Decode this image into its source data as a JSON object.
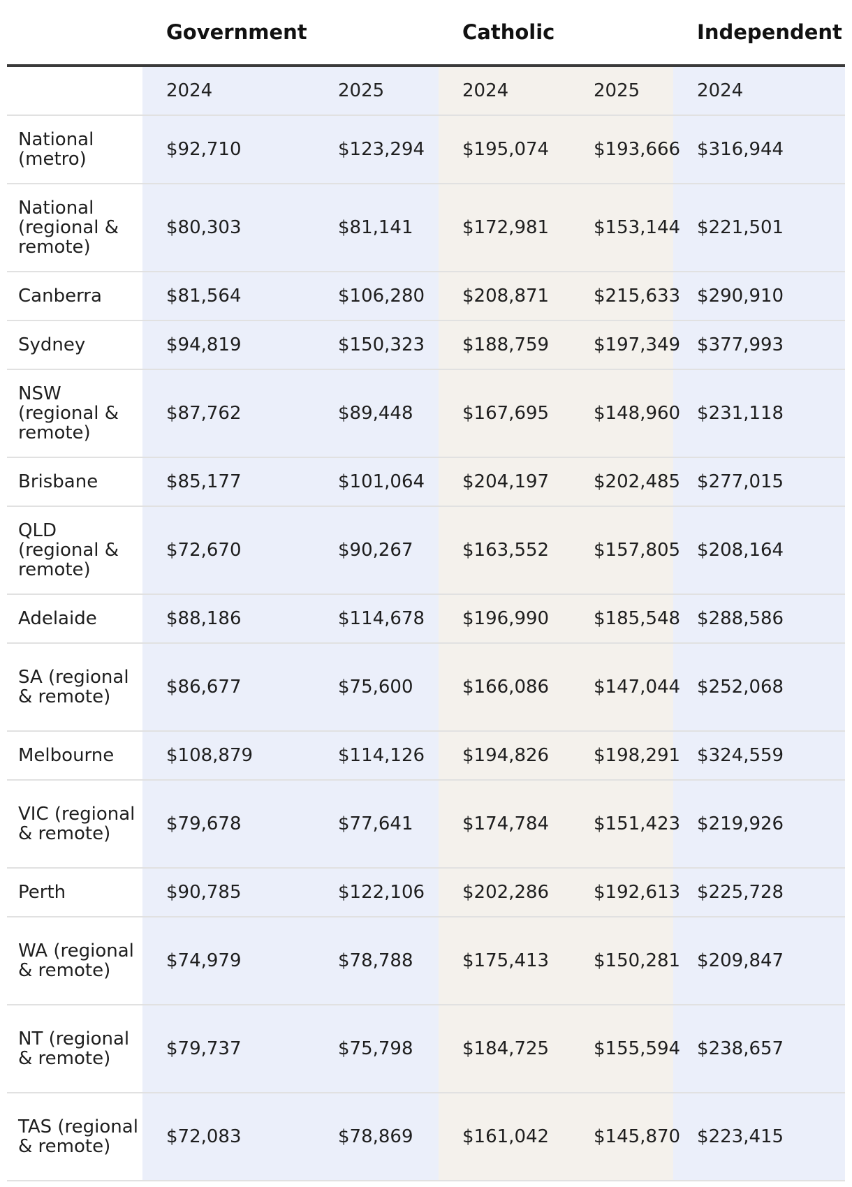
{
  "table": {
    "groups": [
      "Government",
      "Catholic",
      "Independent"
    ],
    "years": [
      "2024",
      "2025",
      "2024",
      "2025",
      "2024"
    ],
    "rows": [
      {
        "region": "National (metro)",
        "values": [
          "$92,710",
          "$123,294",
          "$195,074",
          "$193,666",
          "$316,944"
        ]
      },
      {
        "region": "National (regional & remote)",
        "values": [
          "$80,303",
          "$81,141",
          "$172,981",
          "$153,144",
          "$221,501"
        ]
      },
      {
        "region": "Canberra",
        "values": [
          "$81,564",
          "$106,280",
          "$208,871",
          "$215,633",
          "$290,910"
        ]
      },
      {
        "region": "Sydney",
        "values": [
          "$94,819",
          "$150,323",
          "$188,759",
          "$197,349",
          "$377,993"
        ]
      },
      {
        "region": "NSW (regional & remote)",
        "values": [
          "$87,762",
          "$89,448",
          "$167,695",
          "$148,960",
          "$231,118"
        ]
      },
      {
        "region": "Brisbane",
        "values": [
          "$85,177",
          "$101,064",
          "$204,197",
          "$202,485",
          "$277,015"
        ]
      },
      {
        "region": "QLD (regional & remote)",
        "values": [
          "$72,670",
          "$90,267",
          "$163,552",
          "$157,805",
          "$208,164"
        ]
      },
      {
        "region": "Adelaide",
        "values": [
          "$88,186",
          "$114,678",
          "$196,990",
          "$185,548",
          "$288,586"
        ]
      },
      {
        "region": "SA (regional & remote)",
        "values": [
          "$86,677",
          "$75,600",
          "$166,086",
          "$147,044",
          "$252,068"
        ]
      },
      {
        "region": "Melbourne",
        "values": [
          "$108,879",
          "$114,126",
          "$194,826",
          "$198,291",
          "$324,559"
        ]
      },
      {
        "region": "VIC (regional & remote)",
        "values": [
          "$79,678",
          "$77,641",
          "$174,784",
          "$151,423",
          "$219,926"
        ]
      },
      {
        "region": "Perth",
        "values": [
          "$90,785",
          "$122,106",
          "$202,286",
          "$192,613",
          "$225,728"
        ]
      },
      {
        "region": "WA (regional & remote)",
        "values": [
          "$74,979",
          "$78,788",
          "$175,413",
          "$150,281",
          "$209,847"
        ]
      },
      {
        "region": "NT (regional & remote)",
        "values": [
          "$79,737",
          "$75,798",
          "$184,725",
          "$155,594",
          "$238,657"
        ]
      },
      {
        "region": "TAS (regional & remote)",
        "values": [
          "$72,083",
          "$78,869",
          "$161,042",
          "$145,870",
          "$223,415"
        ]
      }
    ]
  },
  "colors": {
    "government_bg": "#ebeffa",
    "catholic_bg": "#f4f1ec",
    "independent_bg": "#ebeffa",
    "header_rule": "#3a3a3a",
    "row_rule": "#e1e1e1"
  }
}
